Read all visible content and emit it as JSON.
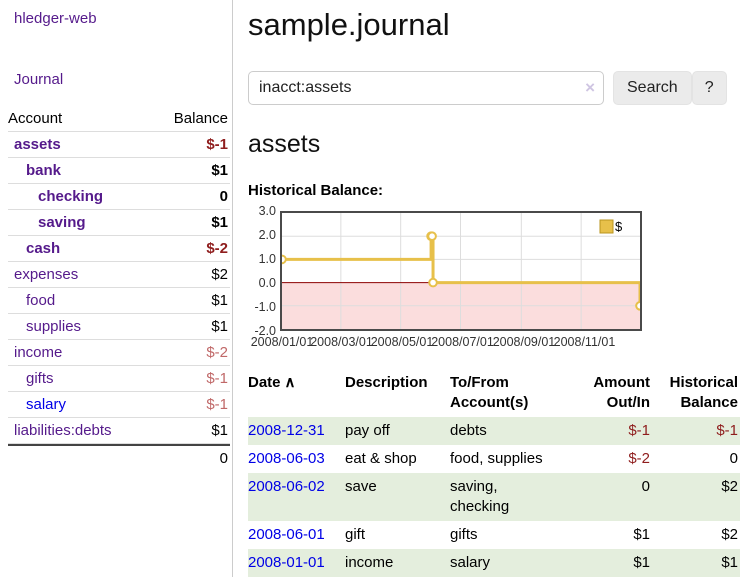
{
  "sidebar": {
    "app_title": "hledger-web",
    "journal_link": "Journal",
    "accounts": {
      "header_account": "Account",
      "header_balance": "Balance",
      "rows": [
        {
          "name": "assets",
          "balance": "$-1"
        },
        {
          "name": "bank",
          "balance": "$1"
        },
        {
          "name": "checking",
          "balance": "0"
        },
        {
          "name": "saving",
          "balance": "$1"
        },
        {
          "name": "cash",
          "balance": "$-2"
        },
        {
          "name": "expenses",
          "balance": "$2"
        },
        {
          "name": "food",
          "balance": "$1"
        },
        {
          "name": "supplies",
          "balance": "$1"
        },
        {
          "name": "income",
          "balance": "$-2"
        },
        {
          "name": "gifts",
          "balance": "$-1"
        },
        {
          "name": "salary",
          "balance": "$-1"
        },
        {
          "name": "liabilities:debts",
          "balance": "$1"
        }
      ],
      "total": "0"
    }
  },
  "main": {
    "title": "sample.journal",
    "search": {
      "value": "inacct:assets",
      "clear_icon": "×",
      "button_label": "Search",
      "help_label": "?"
    },
    "account_heading": "assets",
    "chart_label": "Historical Balance:",
    "register": {
      "headers": {
        "date": "Date",
        "description": "Description",
        "to_from": "To/From Account(s)",
        "amount": "Amount Out/In",
        "balance": "Historical Balance"
      },
      "sort_icon": "∧",
      "rows": [
        {
          "date": "2008-12-31",
          "description": "pay off",
          "to_from": "debts",
          "amount": "$-1",
          "balance": "$-1"
        },
        {
          "date": "2008-06-03",
          "description": "eat & shop",
          "to_from": "food, supplies",
          "amount": "$-2",
          "balance": "0"
        },
        {
          "date": "2008-06-02",
          "description": "save",
          "to_from": "saving,\nchecking",
          "amount": "0",
          "balance": "$2"
        },
        {
          "date": "2008-06-01",
          "description": "gift",
          "to_from": "gifts",
          "amount": "$1",
          "balance": "$2"
        },
        {
          "date": "2008-01-01",
          "description": "income",
          "to_from": "salary",
          "amount": "$1",
          "balance": "$1"
        }
      ]
    }
  },
  "chart_data": {
    "type": "line",
    "step": true,
    "title": "Historical Balance",
    "series": [
      {
        "name": "$",
        "points": [
          [
            "2008-01-01",
            1
          ],
          [
            "2008-06-01",
            2
          ],
          [
            "2008-06-02",
            2
          ],
          [
            "2008-06-03",
            0
          ],
          [
            "2008-12-31",
            -1
          ]
        ]
      }
    ],
    "xlim": [
      "2008-01-01",
      "2008-12-31"
    ],
    "ylim": [
      -2,
      3
    ],
    "yticks": [
      3,
      2,
      1,
      0,
      -1,
      -2
    ],
    "xticks": [
      {
        "date": "2008-01-01",
        "label": "2008/01/01"
      },
      {
        "date": "2008-03-01",
        "label": "2008/03/01"
      },
      {
        "date": "2008-05-01",
        "label": "2008/05/01"
      },
      {
        "date": "2008-07-01",
        "label": "2008/07/01"
      },
      {
        "date": "2008-09-01",
        "label": "2008/09/01"
      },
      {
        "date": "2008-11-01",
        "label": "2008/11/01"
      }
    ],
    "legend": {
      "label": "$",
      "position": "top-right"
    },
    "grid": true,
    "colors": {
      "line": "#e7c04a",
      "marker_fill": "#ffffff",
      "negative_fill": "#fbdddd",
      "zero_line": "#8b0000",
      "grid": "#dddddd",
      "border": "#4a4a4a",
      "legend_border": "#b8941f"
    }
  }
}
